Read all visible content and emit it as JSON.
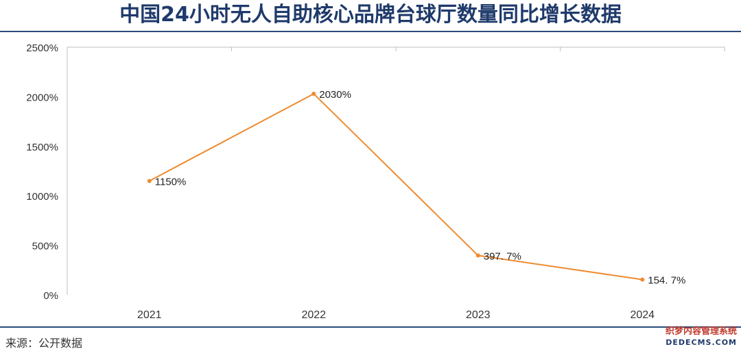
{
  "header": {
    "title": "中国24小时无人自助核心品牌台球厅数量同比增长数据"
  },
  "footer": {
    "source": "来源：公开数据"
  },
  "watermark": {
    "line1": "织梦内容管理系统",
    "line2": "DEDECMS.COM"
  },
  "chart_data": {
    "type": "line",
    "title": "中国24小时无人自助核心品牌台球厅数量同比增长数据",
    "categories": [
      "2021",
      "2022",
      "2023",
      "2024"
    ],
    "values": [
      1150,
      2030,
      397.7,
      154.7
    ],
    "data_labels": [
      "1150%",
      "2030%",
      "397. 7%",
      "154. 7%"
    ],
    "y_ticks": [
      0,
      500,
      1000,
      1500,
      2000,
      2500
    ],
    "y_tick_labels": [
      "0%",
      "500%",
      "1000%",
      "1500%",
      "2000%",
      "2500%"
    ],
    "ylim": [
      0,
      2500
    ],
    "xlabel": "",
    "ylabel": "",
    "grid": false,
    "line_color": "#ed8b2f",
    "axis_color": "#bfbfbf"
  }
}
